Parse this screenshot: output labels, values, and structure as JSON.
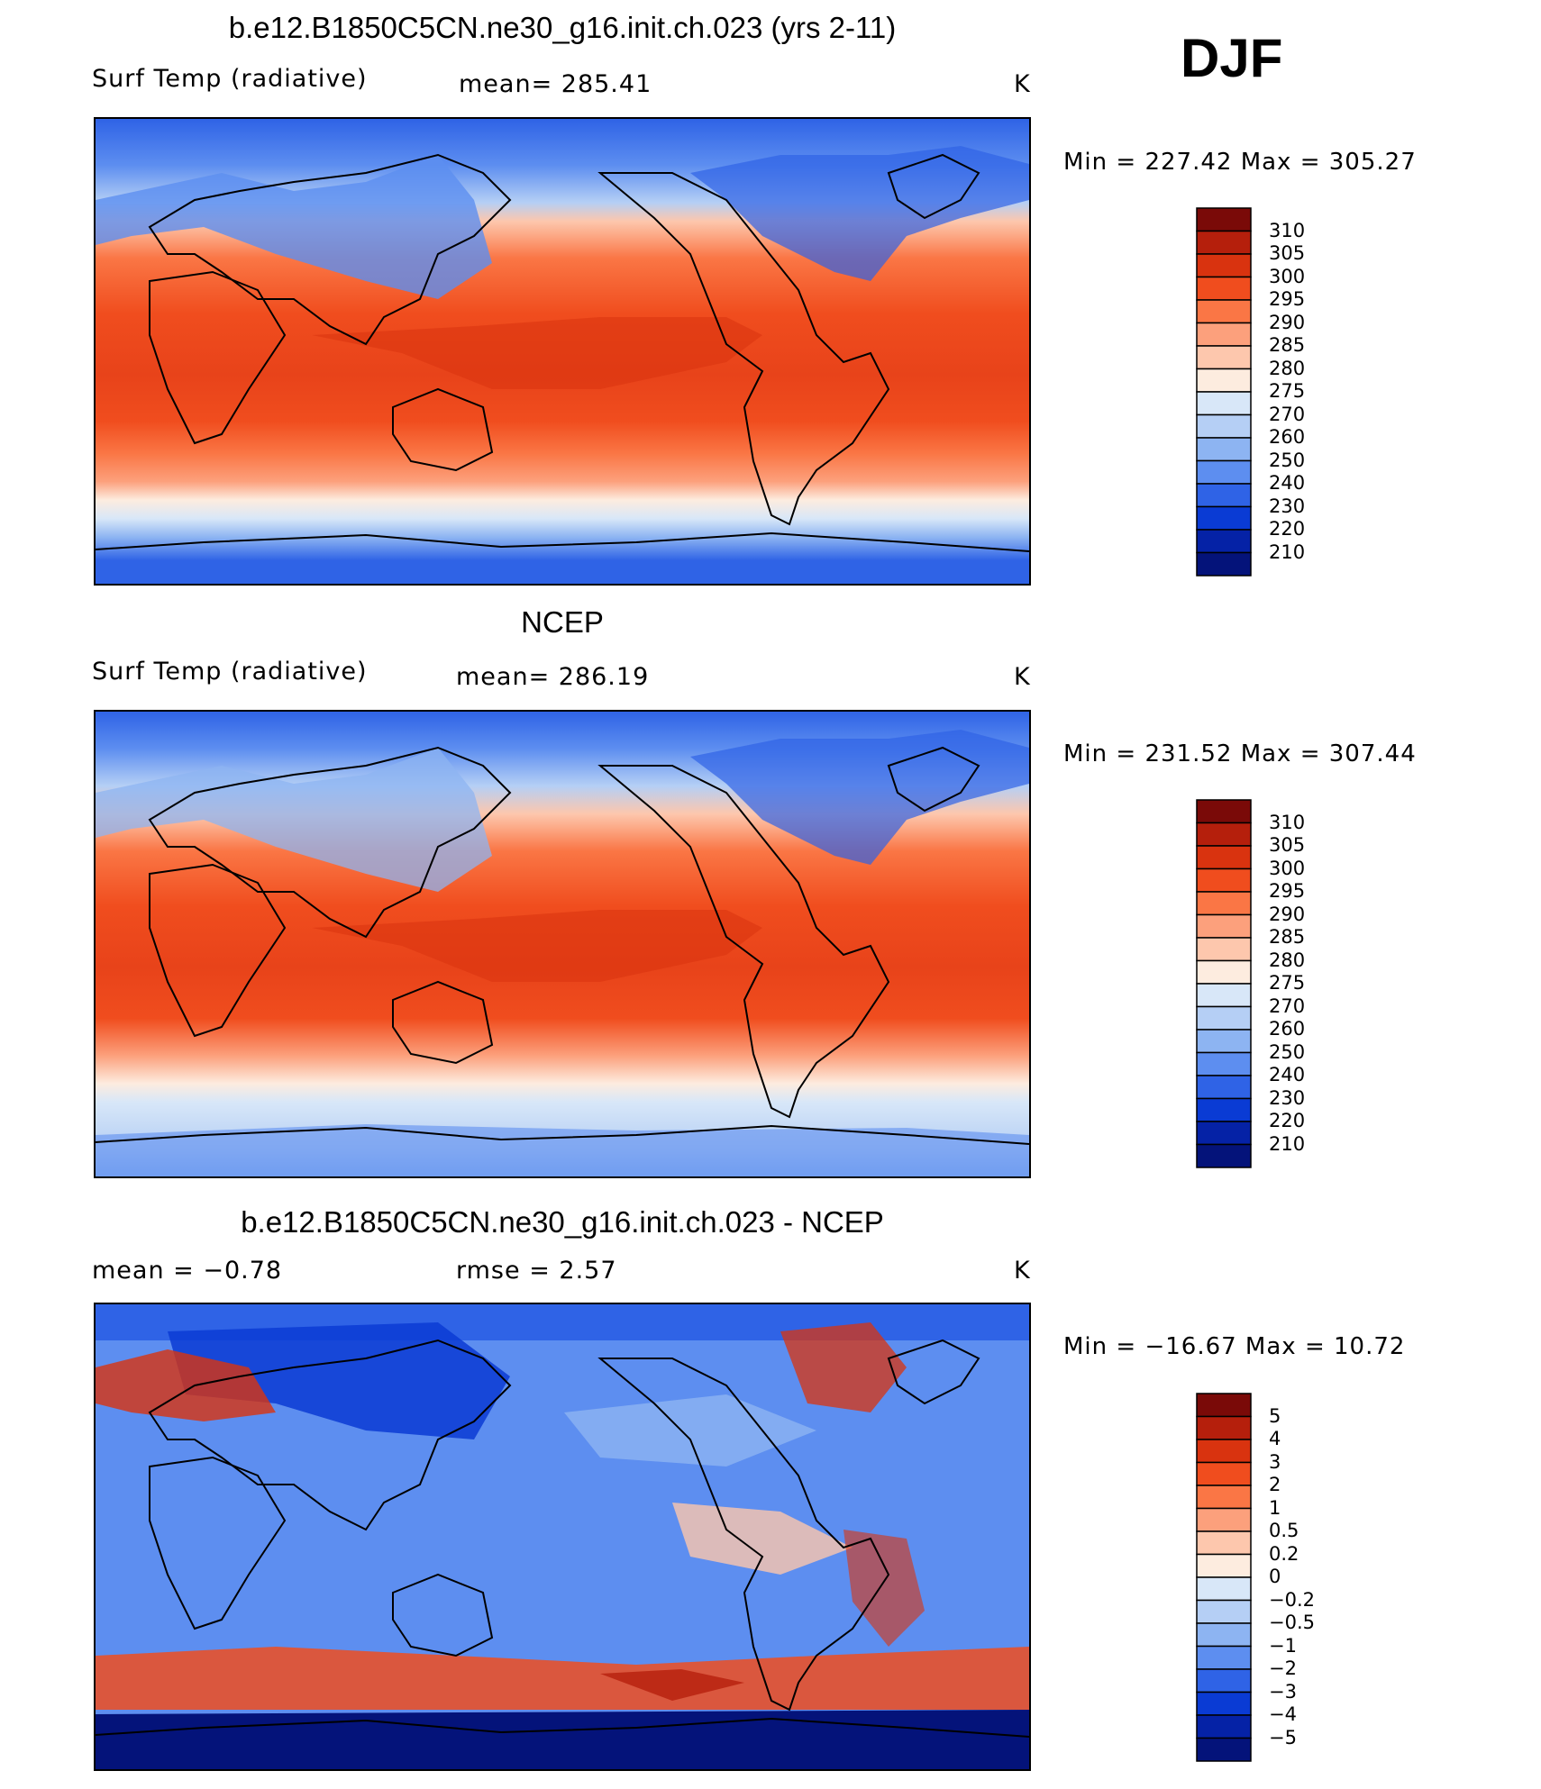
{
  "season": "DJF",
  "panels": [
    {
      "id": "model",
      "title": "b.e12.B1850C5CN.ne30_g16.init.ch.023 (yrs 2-11)",
      "left_label": "Surf Temp (radiative)",
      "center_label": "mean=  285.41",
      "units": "K",
      "minmax": "Min  =  227.42  Max  =  305.27",
      "kind": "abs",
      "colorbar": {
        "levels": [
          "310",
          "305",
          "300",
          "295",
          "290",
          "285",
          "280",
          "275",
          "270",
          "260",
          "250",
          "240",
          "230",
          "220",
          "210"
        ]
      }
    },
    {
      "id": "obs",
      "title": "NCEP",
      "left_label": "Surf Temp (radiative)",
      "center_label": "mean=  286.19",
      "units": "K",
      "minmax": "Min  =  231.52  Max  =  307.44",
      "kind": "abs",
      "colorbar": {
        "levels": [
          "310",
          "305",
          "300",
          "295",
          "290",
          "285",
          "280",
          "275",
          "270",
          "260",
          "250",
          "240",
          "230",
          "220",
          "210"
        ]
      }
    },
    {
      "id": "diff",
      "title": "b.e12.B1850C5CN.ne30_g16.init.ch.023 - NCEP",
      "left_label": "mean  =    −0.78",
      "center_label": "rmse  =     2.57",
      "units": "K",
      "minmax": "Min  =  −16.67  Max  =    10.72",
      "kind": "diff",
      "colorbar": {
        "levels": [
          "5",
          "4",
          "3",
          "2",
          "1",
          "0.5",
          "0.2",
          "0",
          "−0.2",
          "−0.5",
          "−1",
          "−2",
          "−3",
          "−4",
          "−5"
        ]
      }
    }
  ],
  "palettes": {
    "abs": [
      "#7a0a08",
      "#b51f0c",
      "#d9330f",
      "#f04d1e",
      "#fa7645",
      "#fca07c",
      "#fdc7ad",
      "#fdecdf",
      "#d8e7f8",
      "#b5cff5",
      "#8db4f2",
      "#5d8ef0",
      "#2f63e6",
      "#0a3bd4",
      "#0522a6",
      "#04137a"
    ],
    "diff": [
      "#7a0a08",
      "#b51f0c",
      "#d9330f",
      "#f04d1e",
      "#fa7645",
      "#fca07c",
      "#fdc7ad",
      "#fdecdf",
      "#d8e7f8",
      "#b5cff5",
      "#8db4f2",
      "#5d8ef0",
      "#2f63e6",
      "#0a3bd4",
      "#0522a6",
      "#04137a"
    ]
  }
}
